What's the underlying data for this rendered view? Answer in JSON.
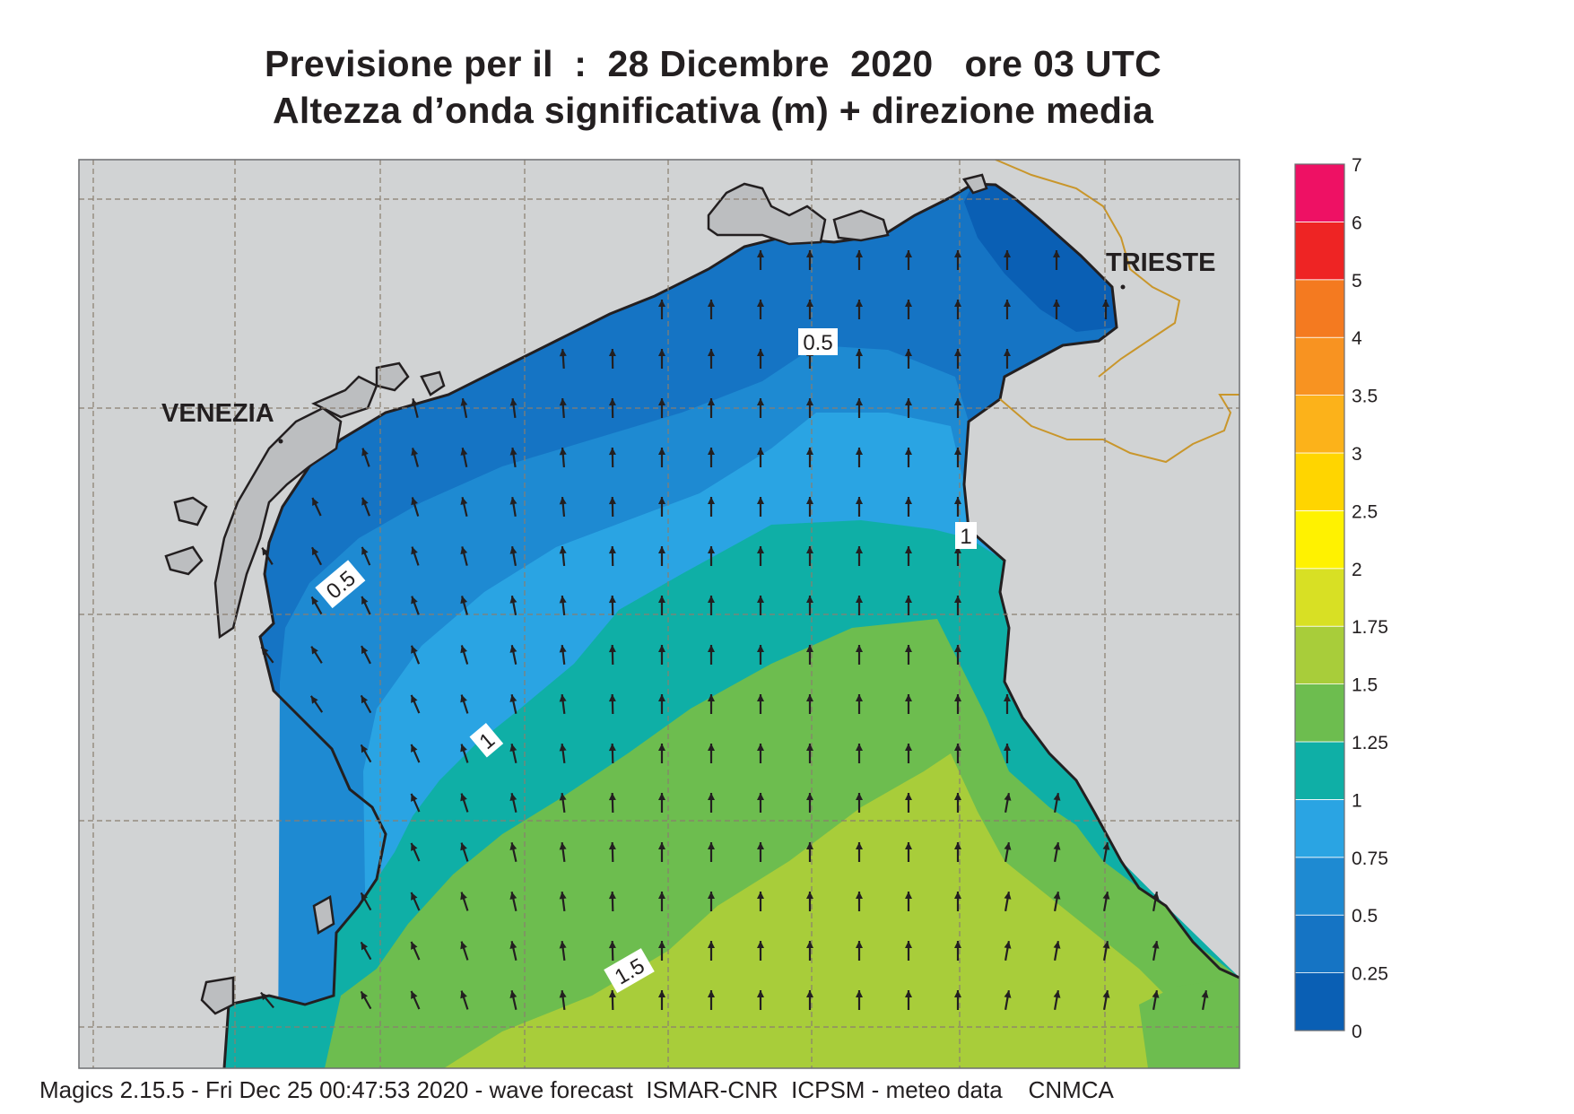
{
  "title_line1": "Previsione per il  :  28 Dicembre  2020   ore 03 UTC",
  "title_line2": "Altezza d’onda significativa (m) + direzione media",
  "places": {
    "venezia": "VENEZIA",
    "trieste": "TRIESTE"
  },
  "contour_labels": [
    "0.5",
    "0.5",
    "1",
    "1",
    "1.5"
  ],
  "footer": "Magics 2.15.5 - Fri Dec 25 00:47:53 2020 - wave forecast  ISMAR-CNR  ICPSM - meteo data    CNMCA",
  "legend": {
    "unit": "m",
    "levels": [
      "0",
      "0.25",
      "0.5",
      "0.75",
      "1",
      "1.25",
      "1.5",
      "1.75",
      "2",
      "2.5",
      "3",
      "3.5",
      "4",
      "5",
      "6",
      "7"
    ],
    "colors": [
      "#0a5fb4",
      "#1574c4",
      "#1e8ad2",
      "#2aa4e3",
      "#0fafa6",
      "#6dbd4f",
      "#a8cd3a",
      "#d8e024",
      "#fff200",
      "#ffd500",
      "#fcb21a",
      "#f89321",
      "#f47a20",
      "#ee2424",
      "#ee1164"
    ]
  },
  "colors": {
    "land": "#d1d3d4",
    "border": "#c9962b",
    "arrow": "#231f20"
  }
}
